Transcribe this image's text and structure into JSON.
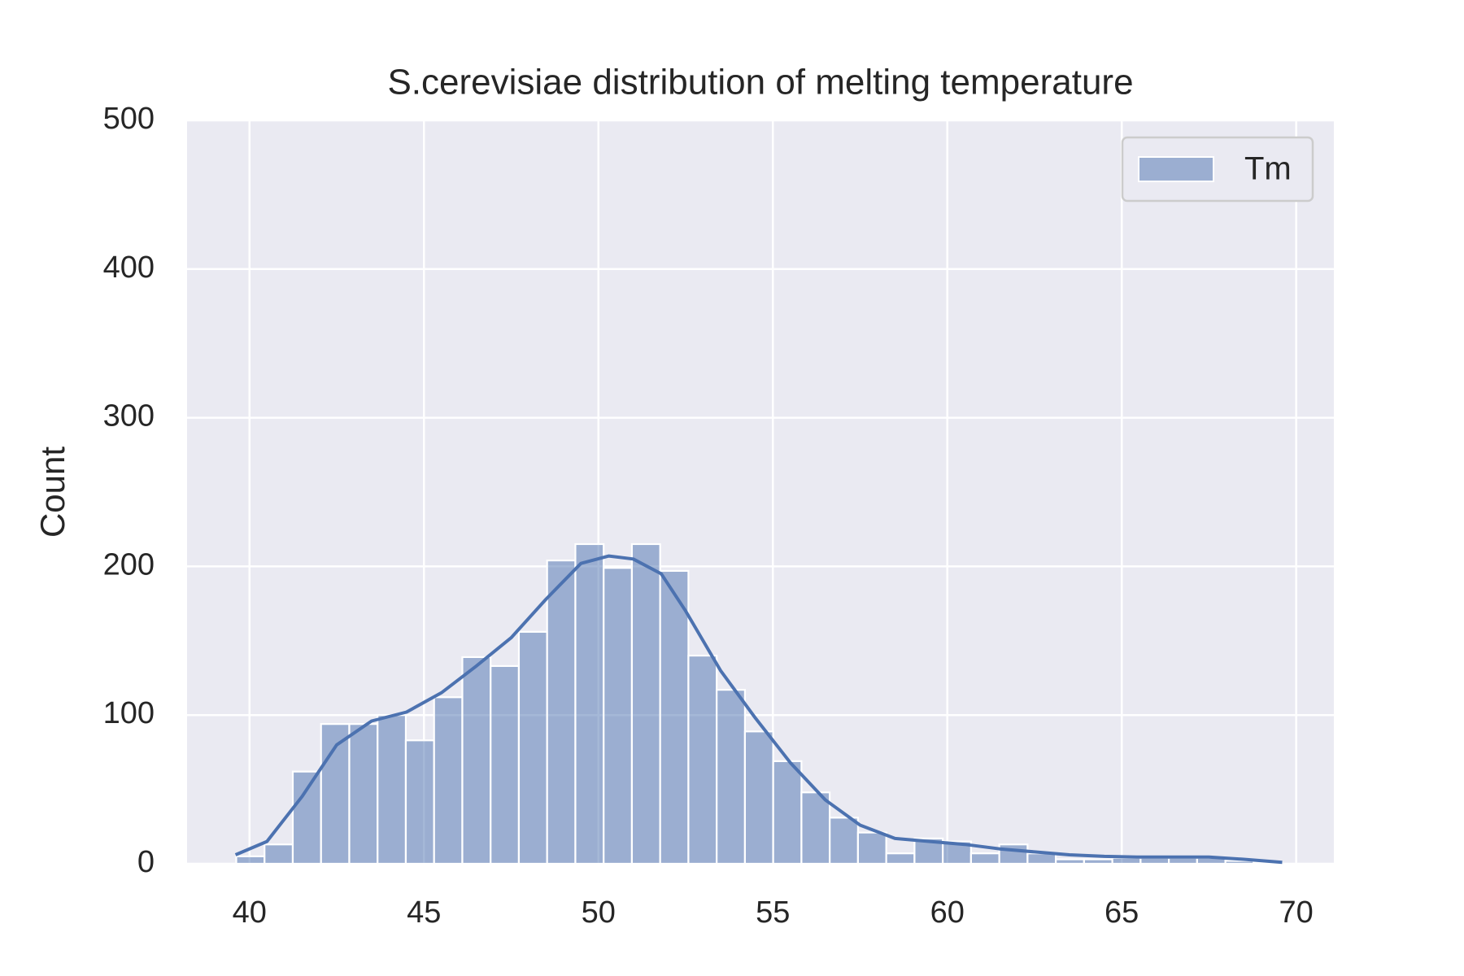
{
  "chart_data": {
    "type": "histogram",
    "title": "S.cerevisiae distribution of melting temperature",
    "ylabel": "Count",
    "bins": [
      39.62,
      40.43,
      41.24,
      42.05,
      42.86,
      43.67,
      44.48,
      45.29,
      46.1,
      46.91,
      47.72,
      48.53,
      49.34,
      50.15,
      50.96,
      51.77,
      52.58,
      53.39,
      54.2,
      55.01,
      55.82,
      56.63,
      57.44,
      58.25,
      59.06,
      59.87,
      60.68,
      61.49,
      62.3,
      63.11,
      63.92,
      64.73,
      65.54,
      66.35,
      67.16,
      67.97,
      68.78,
      69.59
    ],
    "series": [
      {
        "name": "Tm",
        "color": "#4c72b0",
        "values": [
          5,
          13,
          62,
          94,
          94,
          100,
          83,
          112,
          139,
          133,
          156,
          204,
          215,
          199,
          215,
          197,
          140,
          117,
          89,
          69,
          48,
          31,
          21,
          7,
          17,
          15,
          7,
          13,
          7,
          3,
          3,
          4,
          4,
          4,
          4,
          2,
          1
        ]
      }
    ],
    "kde": {
      "x": [
        39.6,
        40.5,
        41.5,
        42.5,
        43.5,
        44.5,
        45.5,
        46.5,
        47.5,
        48.5,
        49.5,
        50.3,
        51,
        51.8,
        52.5,
        53.5,
        54.5,
        55.5,
        56.5,
        57.5,
        58.5,
        59.5,
        60.5,
        61.5,
        62.5,
        63.5,
        64.5,
        65.5,
        66.5,
        67.5,
        68.5,
        69.6
      ],
      "values": [
        6,
        15,
        45,
        80,
        96,
        102,
        115,
        133,
        152,
        178,
        202,
        207,
        205,
        195,
        170,
        130,
        98,
        68,
        43,
        26,
        17,
        15,
        13,
        10,
        8,
        6,
        5,
        4.5,
        4.5,
        4.5,
        3,
        1
      ]
    },
    "xlim": [
      38.21,
      71.08
    ],
    "ylim": [
      0,
      500
    ],
    "xticks": [
      40,
      45,
      50,
      55,
      60,
      65,
      70
    ],
    "yticks": [
      0,
      100,
      200,
      300,
      400,
      500
    ],
    "grid": true,
    "legend": "upper right"
  }
}
